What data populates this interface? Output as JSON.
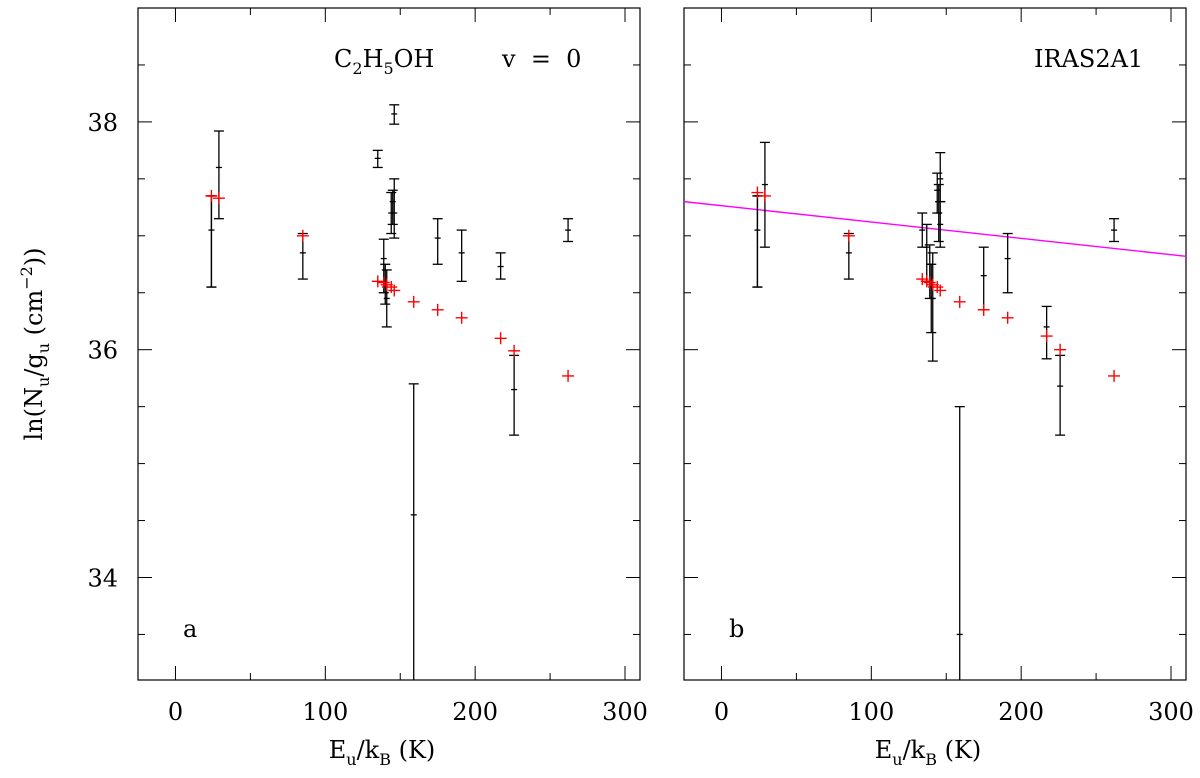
{
  "chart_data": [
    {
      "type": "scatter",
      "panel_label": "a",
      "title": "C2H5OH v = 0",
      "title_parts": {
        "molecule": "C",
        "sub1": "2",
        "mid": "H",
        "sub2": "5",
        "tail": "OH",
        "state": "v  =  0"
      },
      "xlabel": "Eu/kB (K)",
      "ylabel": "ln(Nu/gu (cm-2))",
      "xlim": [
        -25,
        310
      ],
      "ylim": [
        33.1,
        39.0
      ],
      "xticks": [
        0,
        100,
        200,
        300
      ],
      "yticks": [
        34,
        36,
        38
      ],
      "series": [
        {
          "name": "observed",
          "color": "#000000",
          "points": [
            {
              "x": 24,
              "y": 37.35,
              "lo": 36.55,
              "hi": 37.35
            },
            {
              "x": 24,
              "y": 37.05,
              "lo": 36.55,
              "hi": 37.35
            },
            {
              "x": 29,
              "y": 37.6,
              "lo": 37.15,
              "hi": 37.92
            },
            {
              "x": 85,
              "y": 36.85,
              "lo": 36.62,
              "hi": 37.02
            },
            {
              "x": 135,
              "y": 37.68,
              "lo": 37.6,
              "hi": 37.75
            },
            {
              "x": 139,
              "y": 36.8,
              "lo": 36.5,
              "hi": 36.97
            },
            {
              "x": 140,
              "y": 36.55,
              "lo": 36.4,
              "hi": 36.75
            },
            {
              "x": 141,
              "y": 36.45,
              "lo": 36.2,
              "hi": 36.7
            },
            {
              "x": 144,
              "y": 37.2,
              "lo": 37.02,
              "hi": 37.38
            },
            {
              "x": 145,
              "y": 37.3,
              "lo": 37.1,
              "hi": 37.4
            },
            {
              "x": 146,
              "y": 38.07,
              "lo": 37.98,
              "hi": 38.15
            },
            {
              "x": 146,
              "y": 37.2,
              "lo": 36.98,
              "hi": 37.5
            },
            {
              "x": 159,
              "y": 34.55,
              "lo": 33.1,
              "hi": 35.7
            },
            {
              "x": 175,
              "y": 36.98,
              "lo": 36.75,
              "hi": 37.15
            },
            {
              "x": 191,
              "y": 36.85,
              "lo": 36.6,
              "hi": 37.05
            },
            {
              "x": 217,
              "y": 36.73,
              "lo": 36.62,
              "hi": 36.85
            },
            {
              "x": 226,
              "y": 35.65,
              "lo": 35.25,
              "hi": 35.95
            },
            {
              "x": 262,
              "y": 37.05,
              "lo": 36.95,
              "hi": 37.15
            }
          ]
        },
        {
          "name": "model",
          "color": "#ff0000",
          "points": [
            {
              "x": 24,
              "y": 37.35
            },
            {
              "x": 29,
              "y": 37.33
            },
            {
              "x": 85,
              "y": 37.0
            },
            {
              "x": 135,
              "y": 36.6
            },
            {
              "x": 139,
              "y": 36.59
            },
            {
              "x": 141,
              "y": 36.57
            },
            {
              "x": 144,
              "y": 36.55
            },
            {
              "x": 146,
              "y": 36.52
            },
            {
              "x": 159,
              "y": 36.42
            },
            {
              "x": 175,
              "y": 36.35
            },
            {
              "x": 191,
              "y": 36.28
            },
            {
              "x": 217,
              "y": 36.1
            },
            {
              "x": 226,
              "y": 35.99
            },
            {
              "x": 262,
              "y": 35.77
            }
          ]
        }
      ]
    },
    {
      "type": "scatter",
      "panel_label": "b",
      "title": "IRAS2A1",
      "xlabel": "Eu/kB (K)",
      "ylabel": "ln(Nu/gu (cm-2))",
      "xlim": [
        -25,
        310
      ],
      "ylim": [
        33.1,
        39.0
      ],
      "xticks": [
        0,
        100,
        200,
        300
      ],
      "yticks": [
        34,
        36,
        38
      ],
      "fit_line": {
        "name": "fit",
        "color": "#ff00ff",
        "x": [
          -25,
          310
        ],
        "y": [
          37.3,
          36.82
        ]
      },
      "series": [
        {
          "name": "observed",
          "color": "#000000",
          "points": [
            {
              "x": 24,
              "y": 37.35,
              "lo": 36.55,
              "hi": 37.35
            },
            {
              "x": 24,
              "y": 37.05,
              "lo": 36.55,
              "hi": 37.35
            },
            {
              "x": 29,
              "y": 37.45,
              "lo": 36.9,
              "hi": 37.82
            },
            {
              "x": 85,
              "y": 36.85,
              "lo": 36.62,
              "hi": 37.02
            },
            {
              "x": 134,
              "y": 37.05,
              "lo": 36.9,
              "hi": 37.2
            },
            {
              "x": 137,
              "y": 36.9,
              "lo": 36.6,
              "hi": 37.1
            },
            {
              "x": 139,
              "y": 36.75,
              "lo": 36.45,
              "hi": 36.92
            },
            {
              "x": 140,
              "y": 36.55,
              "lo": 36.15,
              "hi": 36.75
            },
            {
              "x": 141,
              "y": 36.45,
              "lo": 35.9,
              "hi": 36.85
            },
            {
              "x": 144,
              "y": 37.4,
              "lo": 37.2,
              "hi": 37.55
            },
            {
              "x": 145,
              "y": 37.2,
              "lo": 36.95,
              "hi": 37.45
            },
            {
              "x": 146,
              "y": 37.5,
              "lo": 37.3,
              "hi": 37.73
            },
            {
              "x": 146,
              "y": 37.1,
              "lo": 36.9,
              "hi": 37.3
            },
            {
              "x": 159,
              "y": 33.5,
              "lo": 33.1,
              "hi": 35.5
            },
            {
              "x": 175,
              "y": 36.65,
              "lo": 36.35,
              "hi": 36.9
            },
            {
              "x": 191,
              "y": 36.8,
              "lo": 36.5,
              "hi": 37.02
            },
            {
              "x": 217,
              "y": 36.2,
              "lo": 35.92,
              "hi": 36.38
            },
            {
              "x": 226,
              "y": 35.68,
              "lo": 35.25,
              "hi": 35.95
            },
            {
              "x": 262,
              "y": 37.05,
              "lo": 36.95,
              "hi": 37.15
            }
          ]
        },
        {
          "name": "model",
          "color": "#ff0000",
          "points": [
            {
              "x": 24,
              "y": 37.38
            },
            {
              "x": 29,
              "y": 37.35
            },
            {
              "x": 85,
              "y": 37.0
            },
            {
              "x": 134,
              "y": 36.62
            },
            {
              "x": 137,
              "y": 36.6
            },
            {
              "x": 139,
              "y": 36.59
            },
            {
              "x": 141,
              "y": 36.57
            },
            {
              "x": 144,
              "y": 36.55
            },
            {
              "x": 146,
              "y": 36.52
            },
            {
              "x": 159,
              "y": 36.42
            },
            {
              "x": 175,
              "y": 36.35
            },
            {
              "x": 191,
              "y": 36.28
            },
            {
              "x": 217,
              "y": 36.12
            },
            {
              "x": 226,
              "y": 36.0
            },
            {
              "x": 262,
              "y": 35.77
            }
          ]
        }
      ]
    }
  ]
}
